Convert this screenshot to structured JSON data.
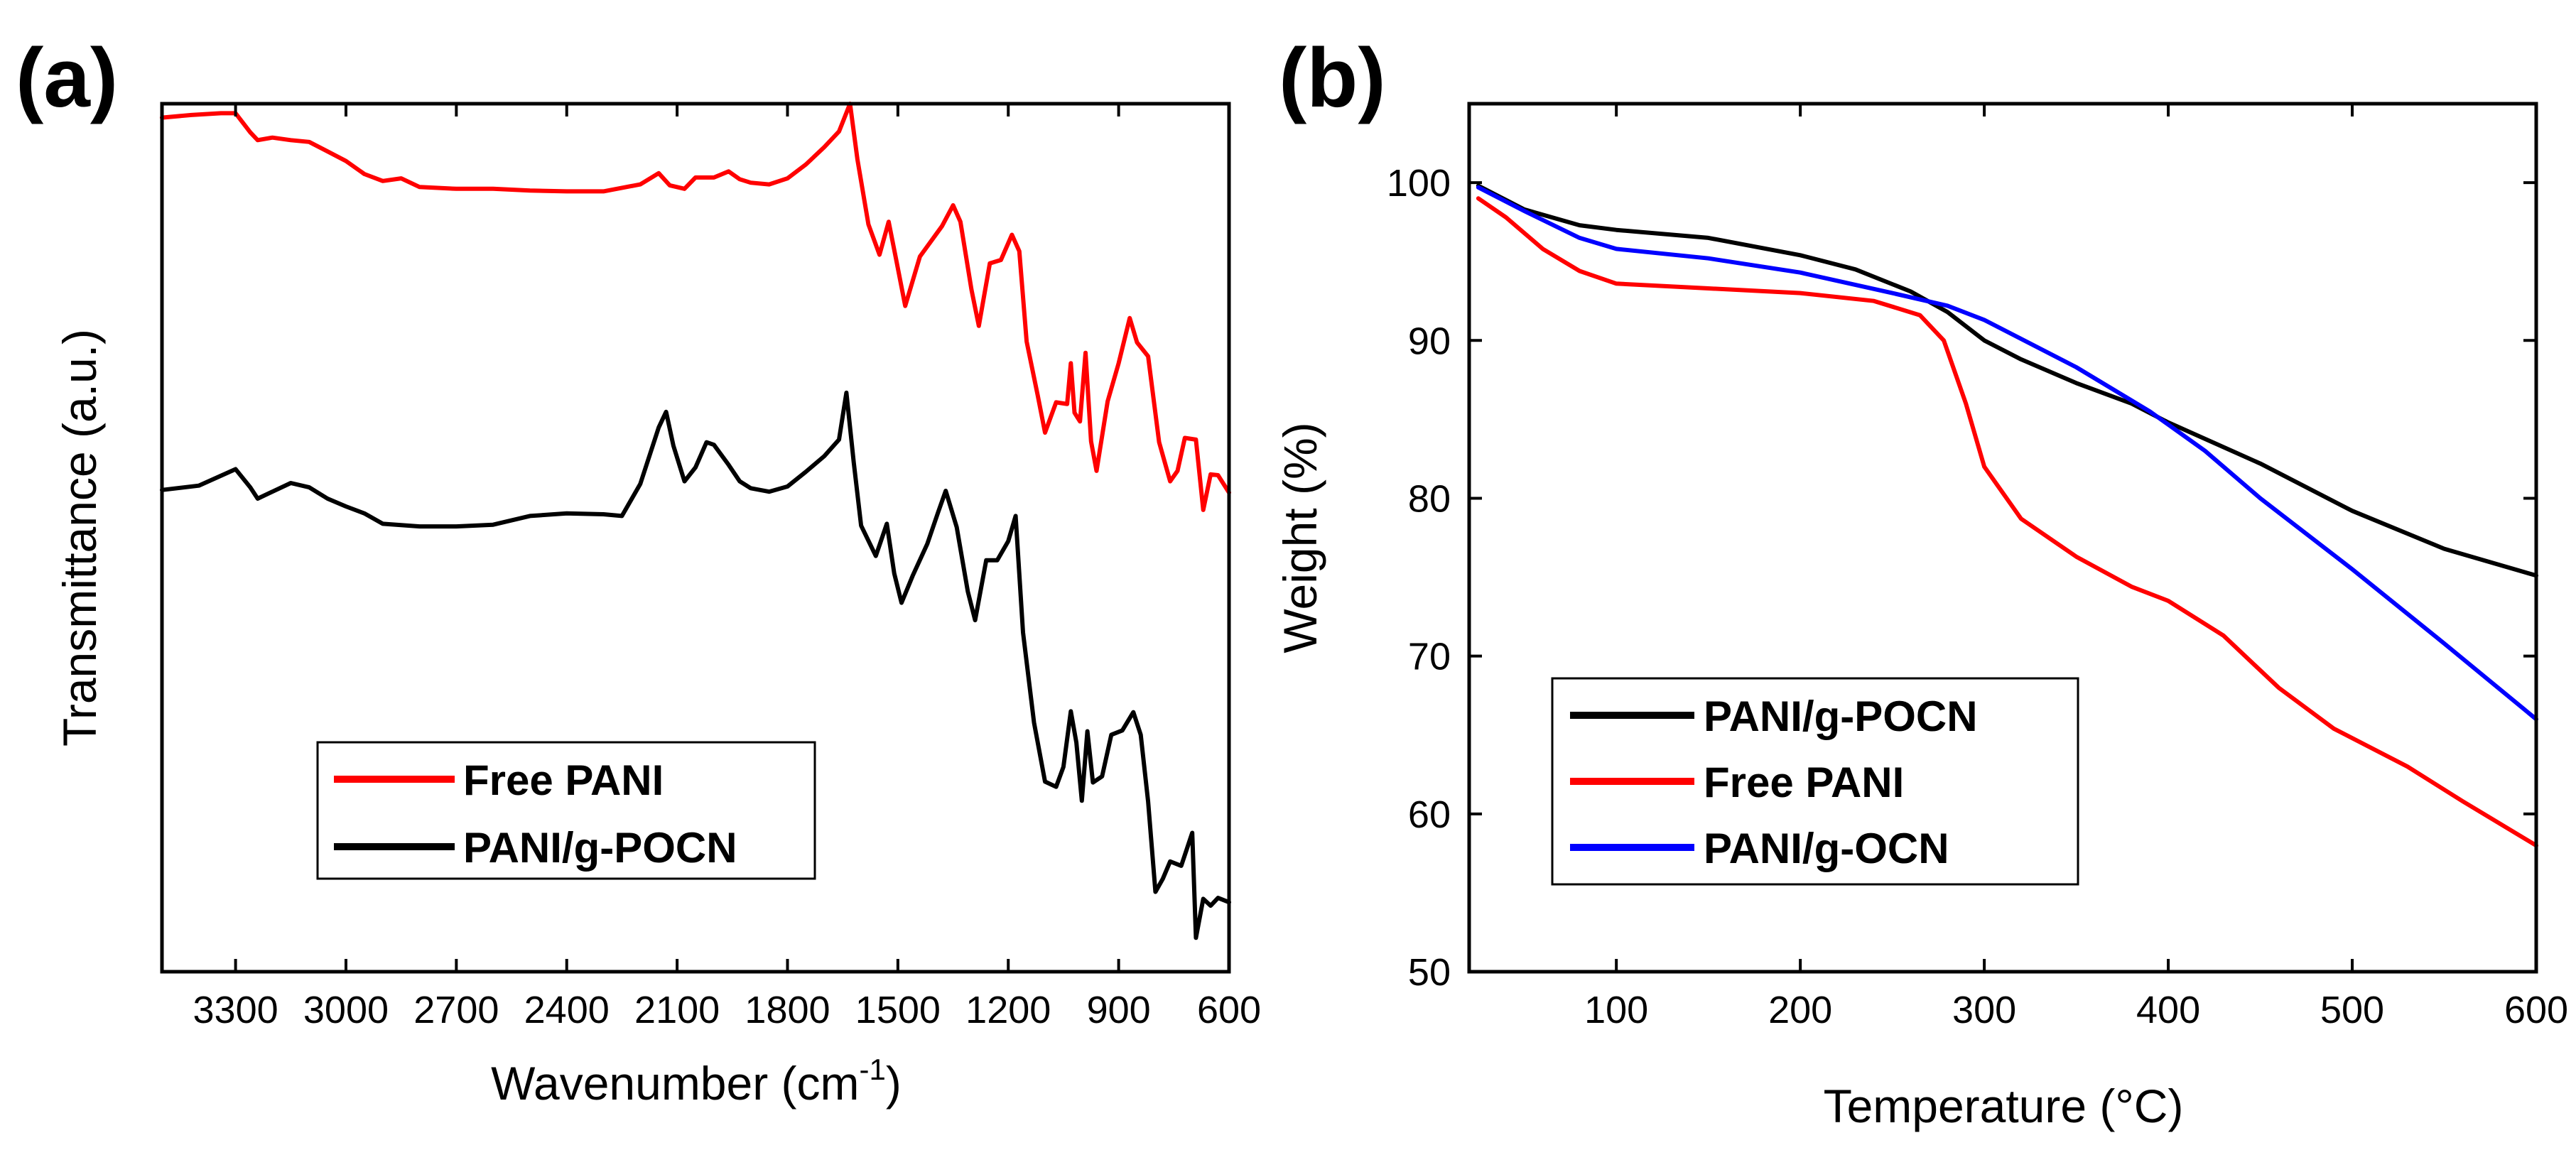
{
  "chart_data": [
    {
      "panel_label": "(a)",
      "type": "line",
      "title": "",
      "xlabel": "Wavenumber (cm",
      "xlabel_sup": "-1",
      "xlabel_end": ")",
      "ylabel": "Transmittance (a.u.)",
      "xlim": [
        3500,
        600
      ],
      "x_reversed": true,
      "ylim": [
        0,
        100
      ],
      "y_ticks_shown": false,
      "x_ticks": [
        3300,
        3000,
        2700,
        2400,
        2100,
        1800,
        1500,
        1200,
        900,
        600
      ],
      "x_tick_labels": [
        "3300",
        "3000",
        "2700",
        "2400",
        "2100",
        "1800",
        "1500",
        "1200",
        "900",
        "600"
      ],
      "legend_position": "lower-center",
      "series": [
        {
          "name": "Free PANI",
          "color": "#ff0000",
          "points": [
            [
              3500,
              98.4
            ],
            [
              3420,
              98.7
            ],
            [
              3340,
              98.9
            ],
            [
              3300,
              98.9
            ],
            [
              3260,
              96.7
            ],
            [
              3240,
              95.8
            ],
            [
              3200,
              96.1
            ],
            [
              3150,
              95.8
            ],
            [
              3100,
              95.6
            ],
            [
              3050,
              94.5
            ],
            [
              3000,
              93.4
            ],
            [
              2950,
              91.9
            ],
            [
              2900,
              91.1
            ],
            [
              2850,
              91.4
            ],
            [
              2800,
              90.4
            ],
            [
              2700,
              90.2
            ],
            [
              2600,
              90.2
            ],
            [
              2500,
              90.0
            ],
            [
              2400,
              89.9
            ],
            [
              2300,
              89.9
            ],
            [
              2200,
              90.7
            ],
            [
              2150,
              92.0
            ],
            [
              2120,
              90.6
            ],
            [
              2080,
              90.2
            ],
            [
              2050,
              91.5
            ],
            [
              2000,
              91.5
            ],
            [
              1960,
              92.2
            ],
            [
              1930,
              91.3
            ],
            [
              1900,
              90.9
            ],
            [
              1850,
              90.7
            ],
            [
              1800,
              91.4
            ],
            [
              1750,
              93.0
            ],
            [
              1700,
              95.0
            ],
            [
              1660,
              96.8
            ],
            [
              1630,
              100.0
            ],
            [
              1610,
              93.6
            ],
            [
              1580,
              86.1
            ],
            [
              1550,
              82.6
            ],
            [
              1525,
              86.4
            ],
            [
              1505,
              82.1
            ],
            [
              1480,
              76.7
            ],
            [
              1440,
              82.4
            ],
            [
              1380,
              85.9
            ],
            [
              1350,
              88.3
            ],
            [
              1330,
              86.4
            ],
            [
              1300,
              78.6
            ],
            [
              1280,
              74.4
            ],
            [
              1250,
              81.6
            ],
            [
              1220,
              82.0
            ],
            [
              1190,
              84.9
            ],
            [
              1170,
              83.0
            ],
            [
              1150,
              72.6
            ],
            [
              1120,
              66.4
            ],
            [
              1100,
              62.1
            ],
            [
              1070,
              65.6
            ],
            [
              1040,
              65.4
            ],
            [
              1030,
              70.1
            ],
            [
              1020,
              64.4
            ],
            [
              1005,
              63.4
            ],
            [
              990,
              71.3
            ],
            [
              975,
              61.1
            ],
            [
              960,
              57.7
            ],
            [
              930,
              65.7
            ],
            [
              900,
              70.1
            ],
            [
              870,
              75.3
            ],
            [
              850,
              72.5
            ],
            [
              820,
              70.9
            ],
            [
              790,
              61.0
            ],
            [
              760,
              56.5
            ],
            [
              740,
              57.7
            ],
            [
              720,
              61.5
            ],
            [
              690,
              61.3
            ],
            [
              670,
              53.2
            ],
            [
              650,
              57.3
            ],
            [
              630,
              57.2
            ],
            [
              600,
              55.2
            ]
          ]
        },
        {
          "name": "PANI/g-POCN",
          "color": "#000000",
          "points": [
            [
              3500,
              55.5
            ],
            [
              3400,
              56.0
            ],
            [
              3300,
              57.9
            ],
            [
              3260,
              55.8
            ],
            [
              3240,
              54.5
            ],
            [
              3200,
              55.3
            ],
            [
              3150,
              56.3
            ],
            [
              3100,
              55.8
            ],
            [
              3050,
              54.5
            ],
            [
              3000,
              53.6
            ],
            [
              2950,
              52.8
            ],
            [
              2900,
              51.6
            ],
            [
              2800,
              51.3
            ],
            [
              2700,
              51.3
            ],
            [
              2600,
              51.5
            ],
            [
              2500,
              52.5
            ],
            [
              2400,
              52.8
            ],
            [
              2300,
              52.7
            ],
            [
              2250,
              52.5
            ],
            [
              2200,
              56.2
            ],
            [
              2150,
              62.7
            ],
            [
              2130,
              64.5
            ],
            [
              2110,
              60.6
            ],
            [
              2080,
              56.5
            ],
            [
              2050,
              58.1
            ],
            [
              2020,
              61.0
            ],
            [
              2000,
              60.7
            ],
            [
              1960,
              58.4
            ],
            [
              1930,
              56.5
            ],
            [
              1900,
              55.7
            ],
            [
              1850,
              55.3
            ],
            [
              1800,
              55.9
            ],
            [
              1750,
              57.6
            ],
            [
              1700,
              59.4
            ],
            [
              1660,
              61.3
            ],
            [
              1640,
              66.7
            ],
            [
              1620,
              58.7
            ],
            [
              1600,
              51.4
            ],
            [
              1560,
              47.9
            ],
            [
              1530,
              51.6
            ],
            [
              1510,
              45.9
            ],
            [
              1490,
              42.5
            ],
            [
              1460,
              45.6
            ],
            [
              1420,
              49.3
            ],
            [
              1390,
              53.0
            ],
            [
              1370,
              55.4
            ],
            [
              1340,
              51.2
            ],
            [
              1310,
              43.8
            ],
            [
              1290,
              40.5
            ],
            [
              1260,
              47.4
            ],
            [
              1230,
              47.4
            ],
            [
              1200,
              49.6
            ],
            [
              1180,
              52.5
            ],
            [
              1160,
              39.1
            ],
            [
              1130,
              28.7
            ],
            [
              1100,
              21.9
            ],
            [
              1070,
              21.3
            ],
            [
              1050,
              23.6
            ],
            [
              1030,
              30.0
            ],
            [
              1015,
              26.4
            ],
            [
              1000,
              19.7
            ],
            [
              985,
              27.7
            ],
            [
              970,
              21.8
            ],
            [
              945,
              22.5
            ],
            [
              920,
              27.3
            ],
            [
              890,
              27.8
            ],
            [
              860,
              29.9
            ],
            [
              840,
              27.3
            ],
            [
              820,
              19.6
            ],
            [
              800,
              9.2
            ],
            [
              780,
              10.7
            ],
            [
              760,
              12.7
            ],
            [
              730,
              12.2
            ],
            [
              700,
              16.0
            ],
            [
              690,
              3.9
            ],
            [
              670,
              8.4
            ],
            [
              650,
              7.6
            ],
            [
              630,
              8.5
            ],
            [
              600,
              8.0
            ]
          ]
        }
      ]
    },
    {
      "panel_label": "(b)",
      "type": "line",
      "title": "",
      "xlabel": "Temperature (°C)",
      "ylabel": "Weight (%)",
      "xlim": [
        20,
        600
      ],
      "ylim": [
        50,
        105
      ],
      "x_ticks": [
        100,
        200,
        300,
        400,
        500,
        600
      ],
      "x_tick_labels": [
        "100",
        "200",
        "300",
        "400",
        "500",
        "600"
      ],
      "y_ticks": [
        50,
        60,
        70,
        80,
        90,
        100
      ],
      "y_tick_labels": [
        "50",
        "60",
        "70",
        "80",
        "90",
        "100"
      ],
      "legend_position": "lower-left",
      "series": [
        {
          "name": "PANI/g-POCN",
          "color": "#000000",
          "points": [
            [
              25,
              99.8
            ],
            [
              50,
              98.3
            ],
            [
              80,
              97.3
            ],
            [
              100,
              97.0
            ],
            [
              150,
              96.5
            ],
            [
              200,
              95.4
            ],
            [
              230,
              94.5
            ],
            [
              260,
              93.1
            ],
            [
              280,
              91.8
            ],
            [
              300,
              90.0
            ],
            [
              320,
              88.8
            ],
            [
              350,
              87.3
            ],
            [
              380,
              86.0
            ],
            [
              400,
              84.8
            ],
            [
              450,
              82.2
            ],
            [
              500,
              79.2
            ],
            [
              550,
              76.8
            ],
            [
              600,
              75.1
            ]
          ]
        },
        {
          "name": "Free PANI",
          "color": "#ff0000",
          "points": [
            [
              25,
              99.0
            ],
            [
              40,
              97.8
            ],
            [
              60,
              95.8
            ],
            [
              80,
              94.4
            ],
            [
              100,
              93.6
            ],
            [
              150,
              93.3
            ],
            [
              200,
              93.0
            ],
            [
              240,
              92.5
            ],
            [
              265,
              91.6
            ],
            [
              278,
              90.0
            ],
            [
              290,
              86.0
            ],
            [
              300,
              82.0
            ],
            [
              320,
              78.7
            ],
            [
              350,
              76.3
            ],
            [
              380,
              74.4
            ],
            [
              400,
              73.5
            ],
            [
              430,
              71.3
            ],
            [
              460,
              68.0
            ],
            [
              490,
              65.4
            ],
            [
              530,
              63.0
            ],
            [
              560,
              60.8
            ],
            [
              600,
              58.0
            ]
          ]
        },
        {
          "name": "PANI/g-OCN",
          "color": "#0000ff",
          "points": [
            [
              25,
              99.7
            ],
            [
              50,
              98.2
            ],
            [
              80,
              96.5
            ],
            [
              100,
              95.8
            ],
            [
              150,
              95.2
            ],
            [
              200,
              94.3
            ],
            [
              250,
              93.0
            ],
            [
              280,
              92.2
            ],
            [
              300,
              91.3
            ],
            [
              350,
              88.3
            ],
            [
              390,
              85.5
            ],
            [
              420,
              83.0
            ],
            [
              450,
              80.0
            ],
            [
              500,
              75.5
            ],
            [
              550,
              70.8
            ],
            [
              600,
              66.0
            ]
          ]
        }
      ]
    }
  ]
}
